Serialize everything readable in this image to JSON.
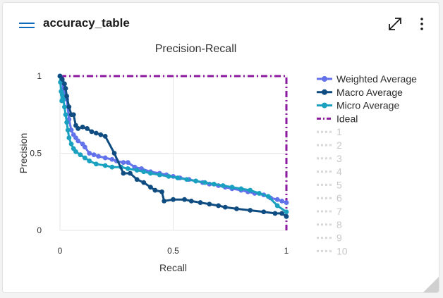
{
  "card": {
    "title": "accuracy_table"
  },
  "icons": {
    "menu": "hamburger-icon",
    "expand": "expand-diagonal-icon",
    "more": "more-vertical-icon"
  },
  "colors": {
    "weighted": "#6272ea",
    "macro": "#0f4c81",
    "micro": "#1aa1c0",
    "ideal": "#8b1a9f",
    "inactive": "#d8d8d8",
    "grid": "#e6e6e6"
  },
  "chart_data": {
    "type": "line",
    "title": "Precision-Recall",
    "xlabel": "Recall",
    "ylabel": "Precision",
    "xlim": [
      0,
      1
    ],
    "ylim": [
      0,
      1
    ],
    "xticks": [
      "0",
      "0.5",
      "1"
    ],
    "yticks": [
      "0",
      "0.5",
      "1"
    ],
    "grid": true,
    "legend_position": "right",
    "series": [
      {
        "name": "Weighted Average",
        "x": [
          0,
          0.01,
          0.015,
          0.02,
          0.03,
          0.04,
          0.05,
          0.06,
          0.07,
          0.08,
          0.1,
          0.11,
          0.13,
          0.15,
          0.17,
          0.2,
          0.23,
          0.25,
          0.28,
          0.3,
          0.33,
          0.36,
          0.4,
          0.44,
          0.47,
          0.5,
          0.53,
          0.57,
          0.6,
          0.63,
          0.66,
          0.7,
          0.73,
          0.76,
          0.8,
          0.83,
          0.86,
          0.9,
          0.93,
          0.96,
          0.98,
          1
        ],
        "y": [
          1,
          0.97,
          0.92,
          0.88,
          0.85,
          0.72,
          0.65,
          0.62,
          0.6,
          0.58,
          0.56,
          0.54,
          0.5,
          0.49,
          0.48,
          0.47,
          0.46,
          0.45,
          0.44,
          0.44,
          0.41,
          0.4,
          0.38,
          0.37,
          0.36,
          0.35,
          0.34,
          0.33,
          0.32,
          0.31,
          0.3,
          0.29,
          0.28,
          0.27,
          0.26,
          0.25,
          0.24,
          0.23,
          0.21,
          0.2,
          0.19,
          0.18
        ]
      },
      {
        "name": "Macro Average",
        "x": [
          0,
          0.01,
          0.02,
          0.025,
          0.03,
          0.04,
          0.05,
          0.06,
          0.07,
          0.08,
          0.1,
          0.12,
          0.14,
          0.16,
          0.18,
          0.2,
          0.24,
          0.28,
          0.31,
          0.34,
          0.37,
          0.4,
          0.42,
          0.45,
          0.46,
          0.5,
          0.55,
          0.58,
          0.62,
          0.66,
          0.7,
          0.73,
          0.78,
          0.84,
          0.9,
          0.95,
          0.98,
          1
        ],
        "y": [
          1,
          0.98,
          0.95,
          0.92,
          0.87,
          0.8,
          0.75,
          0.75,
          0.68,
          0.66,
          0.67,
          0.66,
          0.64,
          0.63,
          0.62,
          0.61,
          0.5,
          0.37,
          0.37,
          0.33,
          0.31,
          0.28,
          0.26,
          0.25,
          0.19,
          0.2,
          0.2,
          0.19,
          0.18,
          0.17,
          0.16,
          0.15,
          0.14,
          0.13,
          0.12,
          0.11,
          0.11,
          0.09
        ]
      },
      {
        "name": "Micro Average",
        "x": [
          0,
          0.002,
          0.005,
          0.008,
          0.01,
          0.015,
          0.02,
          0.025,
          0.03,
          0.035,
          0.04,
          0.05,
          0.06,
          0.07,
          0.09,
          0.11,
          0.13,
          0.16,
          0.2,
          0.23,
          0.27,
          0.3,
          0.34,
          0.37,
          0.4,
          0.44,
          0.48,
          0.52,
          0.56,
          0.6,
          0.64,
          0.68,
          0.72,
          0.76,
          0.8,
          0.84,
          0.88,
          0.92,
          0.96,
          1
        ],
        "y": [
          1,
          0.96,
          0.9,
          0.84,
          0.88,
          0.85,
          0.8,
          0.75,
          0.7,
          0.65,
          0.6,
          0.56,
          0.53,
          0.51,
          0.49,
          0.47,
          0.45,
          0.43,
          0.42,
          0.41,
          0.41,
          0.4,
          0.39,
          0.38,
          0.37,
          0.36,
          0.35,
          0.34,
          0.33,
          0.32,
          0.31,
          0.3,
          0.29,
          0.28,
          0.27,
          0.26,
          0.24,
          0.22,
          0.16,
          0.12
        ]
      },
      {
        "name": "Ideal",
        "x": [
          0,
          1,
          1
        ],
        "y": [
          1,
          1,
          0
        ]
      }
    ],
    "legend": [
      {
        "label": "Weighted Average",
        "series": 0,
        "active": true
      },
      {
        "label": "Macro Average",
        "series": 1,
        "active": true
      },
      {
        "label": "Micro Average",
        "series": 2,
        "active": true
      },
      {
        "label": "Ideal",
        "series": 3,
        "active": true
      },
      {
        "label": "1",
        "active": false
      },
      {
        "label": "2",
        "active": false
      },
      {
        "label": "3",
        "active": false
      },
      {
        "label": "4",
        "active": false
      },
      {
        "label": "5",
        "active": false
      },
      {
        "label": "6",
        "active": false
      },
      {
        "label": "7",
        "active": false
      },
      {
        "label": "8",
        "active": false
      },
      {
        "label": "9",
        "active": false
      },
      {
        "label": "10",
        "active": false
      }
    ]
  }
}
